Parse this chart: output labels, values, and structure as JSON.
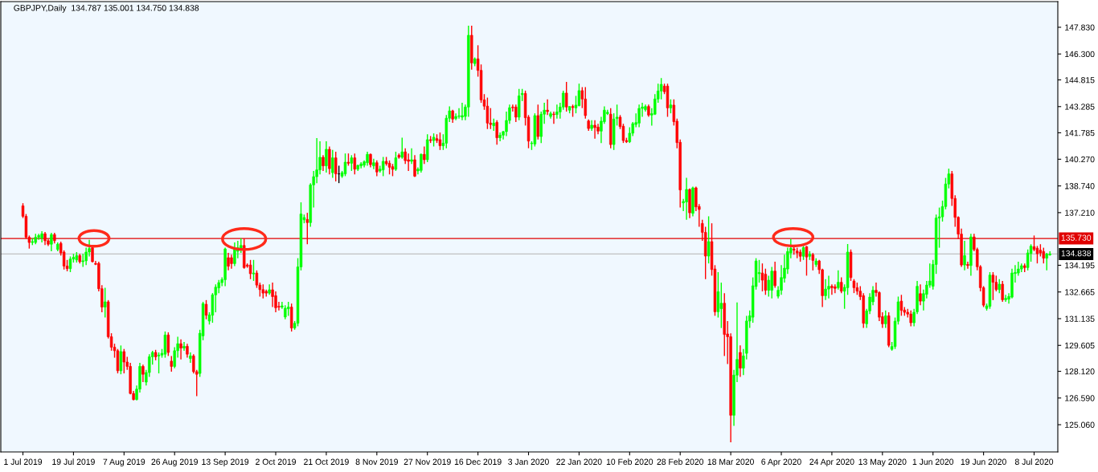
{
  "chart_data": {
    "type": "candlestick",
    "title": "GBPJPY,Daily  134.787 135.001 134.750 134.838",
    "categories": [
      "1 Jul 2019",
      null,
      null,
      null,
      null,
      null,
      null,
      null,
      null,
      null,
      null,
      null,
      null,
      null,
      null,
      null,
      "19 Jul 2019",
      null,
      null,
      null,
      null,
      null,
      null,
      null,
      null,
      null,
      null,
      null,
      null,
      null,
      null,
      null,
      "7 Aug 2019",
      null,
      null,
      null,
      null,
      null,
      null,
      null,
      null,
      null,
      null,
      null,
      null,
      null,
      null,
      null,
      "26 Aug 2019",
      null,
      null,
      null,
      null,
      null,
      null,
      null,
      null,
      null,
      null,
      null,
      null,
      null,
      null,
      null,
      "13 Sep 2019",
      null,
      null,
      null,
      null,
      null,
      null,
      null,
      null,
      null,
      null,
      null,
      null,
      null,
      null,
      null,
      "2 Oct 2019",
      null,
      null,
      null,
      null,
      null,
      null,
      null,
      null,
      null,
      null,
      null,
      null,
      null,
      null,
      null,
      "21 Oct 2019",
      null,
      null,
      null,
      null,
      null,
      null,
      null,
      null,
      null,
      null,
      null,
      null,
      null,
      null,
      null,
      "8 Nov 2019",
      null,
      null,
      null,
      null,
      null,
      null,
      null,
      null,
      null,
      null,
      null,
      null,
      null,
      null,
      null,
      "27 Nov 2019",
      null,
      null,
      null,
      null,
      null,
      null,
      null,
      null,
      null,
      null,
      null,
      null,
      null,
      null,
      null,
      "16 Dec 2019",
      null,
      null,
      null,
      null,
      null,
      null,
      null,
      null,
      null,
      null,
      null,
      null,
      null,
      null,
      null,
      "3 Jan 2020",
      null,
      null,
      null,
      null,
      null,
      null,
      null,
      null,
      null,
      null,
      null,
      null,
      null,
      null,
      null,
      "22 Jan 2020",
      null,
      null,
      null,
      null,
      null,
      null,
      null,
      null,
      null,
      null,
      null,
      null,
      null,
      null,
      null,
      "10 Feb 2020",
      null,
      null,
      null,
      null,
      null,
      null,
      null,
      null,
      null,
      null,
      null,
      null,
      null,
      null,
      null,
      "28 Feb 2020",
      null,
      null,
      null,
      null,
      null,
      null,
      null,
      null,
      null,
      null,
      null,
      null,
      null,
      null,
      null,
      "18 Mar 2020",
      null,
      null,
      null,
      null,
      null,
      null,
      null,
      null,
      null,
      null,
      null,
      null,
      null,
      null,
      null,
      "6 Apr 2020",
      null,
      null,
      null,
      null,
      null,
      null,
      null,
      null,
      null,
      null,
      null,
      null,
      null,
      null,
      null,
      "24 Apr 2020",
      null,
      null,
      null,
      null,
      null,
      null,
      null,
      null,
      null,
      null,
      null,
      null,
      null,
      null,
      null,
      "13 May 2020",
      null,
      null,
      null,
      null,
      null,
      null,
      null,
      null,
      null,
      null,
      null,
      null,
      null,
      null,
      null,
      "1 Jun 2020",
      null,
      null,
      null,
      null,
      null,
      null,
      null,
      null,
      null,
      null,
      null,
      null,
      null,
      null,
      null,
      "19 Jun 2020",
      null,
      null,
      null,
      null,
      null,
      null,
      null,
      null,
      null,
      null,
      null,
      null,
      null,
      null,
      null,
      "8 Jul 2020",
      null,
      null,
      null,
      null,
      null
    ],
    "ohlc": [
      [
        137.6,
        137.75,
        136.9,
        137.0
      ],
      [
        137.0,
        137.13,
        135.7,
        135.8
      ],
      [
        135.8,
        135.9,
        135.15,
        135.5
      ],
      [
        135.5,
        135.75,
        135.35,
        135.55
      ],
      [
        135.5,
        136.0,
        135.4,
        135.8
      ],
      [
        135.8,
        136.0,
        135.65,
        135.9
      ],
      [
        135.75,
        136.15,
        135.5,
        136.0
      ],
      [
        136.0,
        136.1,
        135.35,
        135.6
      ],
      [
        135.6,
        135.7,
        135.3,
        135.4
      ],
      [
        135.4,
        136.05,
        135.0,
        135.95
      ],
      [
        135.95,
        136.05,
        135.45,
        135.6
      ],
      [
        135.1,
        135.5,
        135.0,
        135.4
      ],
      [
        135.45,
        135.55,
        134.75,
        134.9
      ],
      [
        134.95,
        135.05,
        133.95,
        134.15
      ],
      [
        134.15,
        134.5,
        133.85,
        134.0
      ],
      [
        134.0,
        134.7,
        133.8,
        134.55
      ],
      [
        134.55,
        134.85,
        134.35,
        134.65
      ],
      [
        134.5,
        134.95,
        134.35,
        134.75
      ],
      [
        134.75,
        134.85,
        134.3,
        134.4
      ],
      [
        134.4,
        134.85,
        134.1,
        134.45
      ],
      [
        134.45,
        135.2,
        134.2,
        134.95
      ],
      [
        134.95,
        135.65,
        134.7,
        135.15
      ],
      [
        135.2,
        135.3,
        134.35,
        134.4
      ],
      [
        134.3,
        134.45,
        134.2,
        134.25
      ],
      [
        134.3,
        134.4,
        132.7,
        132.85
      ],
      [
        132.85,
        133.05,
        131.5,
        131.8
      ],
      [
        131.8,
        132.9,
        131.2,
        132.1
      ],
      [
        132.1,
        132.2,
        130.0,
        130.1
      ],
      [
        130.1,
        130.3,
        129.3,
        129.5
      ],
      [
        129.5,
        129.7,
        128.9,
        129.3
      ],
      [
        129.3,
        129.4,
        128.0,
        128.15
      ],
      [
        128.15,
        129.6,
        127.95,
        129.25
      ],
      [
        129.25,
        129.4,
        128.0,
        128.65
      ],
      [
        128.65,
        128.95,
        128.2,
        128.4
      ],
      [
        128.4,
        128.6,
        126.8,
        126.85
      ],
      [
        126.85,
        127.0,
        126.45,
        126.5
      ],
      [
        126.5,
        127.3,
        126.45,
        127.1
      ],
      [
        127.1,
        128.6,
        126.9,
        128.4
      ],
      [
        128.4,
        128.5,
        127.5,
        127.95
      ],
      [
        127.5,
        128.2,
        127.3,
        128.05
      ],
      [
        128.05,
        129.1,
        127.8,
        128.95
      ],
      [
        128.95,
        129.3,
        128.5,
        129.2
      ],
      [
        129.2,
        129.35,
        128.75,
        128.95
      ],
      [
        129.0,
        129.2,
        128.0,
        129.05
      ],
      [
        129.05,
        129.4,
        128.9,
        129.15
      ],
      [
        129.1,
        130.4,
        128.9,
        130.2
      ],
      [
        130.2,
        130.35,
        129.0,
        129.2
      ],
      [
        128.7,
        129.0,
        128.1,
        128.4
      ],
      [
        128.4,
        129.5,
        128.3,
        129.3
      ],
      [
        129.3,
        130.1,
        128.9,
        129.7
      ],
      [
        129.7,
        129.95,
        128.8,
        129.45
      ],
      [
        129.45,
        129.8,
        129.3,
        129.55
      ],
      [
        129.55,
        129.7,
        128.9,
        129.1
      ],
      [
        128.85,
        129.2,
        128.6,
        129.0
      ],
      [
        129.0,
        129.1,
        128.0,
        128.1
      ],
      [
        128.1,
        128.2,
        126.7,
        127.95
      ],
      [
        128.0,
        130.5,
        127.8,
        130.3
      ],
      [
        130.15,
        132.1,
        129.9,
        132.0
      ],
      [
        131.96,
        132.2,
        131.1,
        131.33
      ],
      [
        131.0,
        131.5,
        130.8,
        131.35
      ],
      [
        131.33,
        132.6,
        130.9,
        132.5
      ],
      [
        132.5,
        133.1,
        131.5,
        132.94
      ],
      [
        132.9,
        133.35,
        132.6,
        133.2
      ],
      [
        133.2,
        133.5,
        133.0,
        133.37
      ],
      [
        133.37,
        135.2,
        133.0,
        135.13
      ],
      [
        134.63,
        134.9,
        133.9,
        134.14
      ],
      [
        134.63,
        134.8,
        134.0,
        134.29
      ],
      [
        134.29,
        135.5,
        134.15,
        135.13
      ],
      [
        135.0,
        135.6,
        134.6,
        135.2
      ],
      [
        135.13,
        135.75,
        134.9,
        135.33
      ],
      [
        135.33,
        135.73,
        134.0,
        134.06
      ],
      [
        134.21,
        134.3,
        134.05,
        134.14
      ],
      [
        134.21,
        134.5,
        133.4,
        133.71
      ],
      [
        133.7,
        134.5,
        133.3,
        133.75
      ],
      [
        133.75,
        133.9,
        132.9,
        133.06
      ],
      [
        133.06,
        133.2,
        132.4,
        132.8
      ],
      [
        132.8,
        133.1,
        132.3,
        132.6
      ],
      [
        132.7,
        132.8,
        132.4,
        132.6
      ],
      [
        132.6,
        133.1,
        132.5,
        132.79
      ],
      [
        132.79,
        133.2,
        131.8,
        132.4
      ],
      [
        132.45,
        132.7,
        131.5,
        131.76
      ],
      [
        131.84,
        132.1,
        131.6,
        131.8
      ],
      [
        131.8,
        132.1,
        131.7,
        131.87
      ],
      [
        131.23,
        131.9,
        131.1,
        131.73
      ],
      [
        131.7,
        132.1,
        131.3,
        131.8
      ],
      [
        131.8,
        132.0,
        130.4,
        130.6
      ],
      [
        130.6,
        131.0,
        130.5,
        130.87
      ],
      [
        130.87,
        134.6,
        130.7,
        134.1
      ],
      [
        134.1,
        137.8,
        133.9,
        137.13
      ],
      [
        136.8,
        137.1,
        136.6,
        136.93
      ],
      [
        136.82,
        137.2,
        135.4,
        136.64
      ],
      [
        136.64,
        138.9,
        136.4,
        138.8
      ],
      [
        138.8,
        139.6,
        137.5,
        139.27
      ],
      [
        139.27,
        141.48,
        138.9,
        139.66
      ],
      [
        139.66,
        141.3,
        139.4,
        140.38
      ],
      [
        140.38,
        140.5,
        139.6,
        139.89
      ],
      [
        139.89,
        141.3,
        139.5,
        140.84
      ],
      [
        140.84,
        141.0,
        139.4,
        139.73
      ],
      [
        139.5,
        140.8,
        139.2,
        140.35
      ],
      [
        140.35,
        140.7,
        139.0,
        139.43
      ],
      [
        139.43,
        139.9,
        138.9,
        139.43
      ],
      [
        139.3,
        139.6,
        139.2,
        139.5
      ],
      [
        139.43,
        140.6,
        139.3,
        140.1
      ],
      [
        140.1,
        140.6,
        139.9,
        140.04
      ],
      [
        140.04,
        140.5,
        139.6,
        140.35
      ],
      [
        140.35,
        140.6,
        139.4,
        139.7
      ],
      [
        139.7,
        139.95,
        139.6,
        139.92
      ],
      [
        139.89,
        140.1,
        139.75,
        140.0
      ],
      [
        139.93,
        140.2,
        139.8,
        140.12
      ],
      [
        140.07,
        140.7,
        139.9,
        140.55
      ],
      [
        140.55,
        140.6,
        139.8,
        139.96
      ],
      [
        139.89,
        140.3,
        139.7,
        140.07
      ],
      [
        140.07,
        140.2,
        139.3,
        139.54
      ],
      [
        139.6,
        139.9,
        139.5,
        139.7
      ],
      [
        139.66,
        140.4,
        139.3,
        140.15
      ],
      [
        140.15,
        140.4,
        139.9,
        140.01
      ],
      [
        140.04,
        140.2,
        139.4,
        139.81
      ],
      [
        139.84,
        140.0,
        139.3,
        139.69
      ],
      [
        139.69,
        140.7,
        139.6,
        140.35
      ],
      [
        140.5,
        140.6,
        140.3,
        140.38
      ],
      [
        140.38,
        141.5,
        140.3,
        140.69
      ],
      [
        140.69,
        140.9,
        140.0,
        140.19
      ],
      [
        140.24,
        140.6,
        139.6,
        140.15
      ],
      [
        140.15,
        140.9,
        140.0,
        140.24
      ],
      [
        140.24,
        140.5,
        139.25,
        139.3
      ],
      [
        139.6,
        139.8,
        139.4,
        139.7
      ],
      [
        139.63,
        140.6,
        139.5,
        140.55
      ],
      [
        140.55,
        141.0,
        140.0,
        140.24
      ],
      [
        140.24,
        141.7,
        140.1,
        141.39
      ],
      [
        141.39,
        141.6,
        141.2,
        141.34
      ],
      [
        141.34,
        141.75,
        141.0,
        141.53
      ],
      [
        141.45,
        141.7,
        141.2,
        141.34
      ],
      [
        141.39,
        141.8,
        140.8,
        141.04
      ],
      [
        141.04,
        141.7,
        140.8,
        141.19
      ],
      [
        141.19,
        142.8,
        140.9,
        142.62
      ],
      [
        142.62,
        143.3,
        142.4,
        143.04
      ],
      [
        143.04,
        143.1,
        142.35,
        142.57
      ],
      [
        142.6,
        142.9,
        142.5,
        142.72
      ],
      [
        142.72,
        143.2,
        142.6,
        142.75
      ],
      [
        142.68,
        143.5,
        142.5,
        142.77
      ],
      [
        142.72,
        143.4,
        142.5,
        143.26
      ],
      [
        143.26,
        147.92,
        142.7,
        147.37
      ],
      [
        147.37,
        147.92,
        145.4,
        145.79
      ],
      [
        145.75,
        146.1,
        145.6,
        146.02
      ],
      [
        146.02,
        146.8,
        145.0,
        145.36
      ],
      [
        145.36,
        145.7,
        143.5,
        143.67
      ],
      [
        143.67,
        144.0,
        143.1,
        143.31
      ],
      [
        143.31,
        143.8,
        142.0,
        142.34
      ],
      [
        142.34,
        143.2,
        142.0,
        142.26
      ],
      [
        142.19,
        142.6,
        141.9,
        142.34
      ],
      [
        142.38,
        142.5,
        141.1,
        141.5
      ],
      [
        141.5,
        141.8,
        141.3,
        141.65
      ],
      [
        141.65,
        141.9,
        141.4,
        141.85
      ],
      [
        141.85,
        143.0,
        141.6,
        142.49
      ],
      [
        142.49,
        143.4,
        142.3,
        143.22
      ],
      [
        143.26,
        143.4,
        143.0,
        143.22
      ],
      [
        143.26,
        143.4,
        142.4,
        142.68
      ],
      [
        142.68,
        144.3,
        142.5,
        143.9
      ],
      [
        143.97,
        144.3,
        143.6,
        144.04
      ],
      [
        144.04,
        144.2,
        142.2,
        142.65
      ],
      [
        142.68,
        142.8,
        140.9,
        141.31
      ],
      [
        141.16,
        141.3,
        140.8,
        141.19
      ],
      [
        141.14,
        142.9,
        141.0,
        142.77
      ],
      [
        142.77,
        143.4,
        141.4,
        141.57
      ],
      [
        141.57,
        143.0,
        141.2,
        142.85
      ],
      [
        142.85,
        143.5,
        142.3,
        143.08
      ],
      [
        143.08,
        143.7,
        142.8,
        143.0
      ],
      [
        142.72,
        143.0,
        142.6,
        142.88
      ],
      [
        142.86,
        143.0,
        142.3,
        142.83
      ],
      [
        142.83,
        143.4,
        142.6,
        142.98
      ],
      [
        142.98,
        143.5,
        142.6,
        143.26
      ],
      [
        143.26,
        144.2,
        143.1,
        144.06
      ],
      [
        144.06,
        144.7,
        143.0,
        143.26
      ],
      [
        143.08,
        143.3,
        142.9,
        143.29
      ],
      [
        143.29,
        143.4,
        142.7,
        143.23
      ],
      [
        143.21,
        143.9,
        142.9,
        143.37
      ],
      [
        143.34,
        144.6,
        143.3,
        144.2
      ],
      [
        144.2,
        144.4,
        143.2,
        143.72
      ],
      [
        143.72,
        144.4,
        142.6,
        142.77
      ],
      [
        142.46,
        142.55,
        141.9,
        142.03
      ],
      [
        142.03,
        142.5,
        141.9,
        142.22
      ],
      [
        142.22,
        142.5,
        141.45,
        142.08
      ],
      [
        142.11,
        142.3,
        141.7,
        141.88
      ],
      [
        141.88,
        142.7,
        141.2,
        142.45
      ],
      [
        142.42,
        143.3,
        142.3,
        143.08
      ],
      [
        142.88,
        143.1,
        142.8,
        142.96
      ],
      [
        142.85,
        143.2,
        140.9,
        141.11
      ],
      [
        141.11,
        142.9,
        140.8,
        142.57
      ],
      [
        142.6,
        143.4,
        142.2,
        142.68
      ],
      [
        142.68,
        142.8,
        142.0,
        142.14
      ],
      [
        142.16,
        142.3,
        141.2,
        141.34
      ],
      [
        141.34,
        141.5,
        141.2,
        141.27
      ],
      [
        141.27,
        142.1,
        141.2,
        141.76
      ],
      [
        141.76,
        142.4,
        141.6,
        142.31
      ],
      [
        142.26,
        142.9,
        142.1,
        142.37
      ],
      [
        142.34,
        143.4,
        142.1,
        143.18
      ],
      [
        143.18,
        143.5,
        142.7,
        143.26
      ],
      [
        143.11,
        143.4,
        143.0,
        143.29
      ],
      [
        143.29,
        143.4,
        142.7,
        142.8
      ],
      [
        142.8,
        143.2,
        142.2,
        142.88
      ],
      [
        142.85,
        144.0,
        142.8,
        143.72
      ],
      [
        143.72,
        144.6,
        143.5,
        144.18
      ],
      [
        144.18,
        144.92,
        143.7,
        144.56
      ],
      [
        144.46,
        144.6,
        144.0,
        144.14
      ],
      [
        144.46,
        144.6,
        142.7,
        143.21
      ],
      [
        143.21,
        143.7,
        142.9,
        143.38
      ],
      [
        143.37,
        143.7,
        142.2,
        142.42
      ],
      [
        142.45,
        142.6,
        140.9,
        141.22
      ],
      [
        141.24,
        141.4,
        137.5,
        138.51
      ],
      [
        137.77,
        138.0,
        137.3,
        137.85
      ],
      [
        137.82,
        139.2,
        136.8,
        138.54
      ],
      [
        138.54,
        138.6,
        136.9,
        137.2
      ],
      [
        137.17,
        138.7,
        137.0,
        138.63
      ],
      [
        138.63,
        138.7,
        137.3,
        137.54
      ],
      [
        137.56,
        137.7,
        136.4,
        137.39
      ],
      [
        136.59,
        136.8,
        135.6,
        136.08
      ],
      [
        136.08,
        136.4,
        133.4,
        134.72
      ],
      [
        134.72,
        137.0,
        134.3,
        135.55
      ],
      [
        135.55,
        136.6,
        133.6,
        133.95
      ],
      [
        133.98,
        134.2,
        131.3,
        131.53
      ],
      [
        131.53,
        133.8,
        131.2,
        132.68
      ],
      [
        131.71,
        133.2,
        130.6,
        132.02
      ],
      [
        132.02,
        132.6,
        129.0,
        130.23
      ],
      [
        130.26,
        131.0,
        128.54,
        130.1
      ],
      [
        130.1,
        130.3,
        124.05,
        125.6
      ],
      [
        125.6,
        128.2,
        125.0,
        127.9
      ],
      [
        127.9,
        132.07,
        127.5,
        128.8
      ],
      [
        129.2,
        129.6,
        127.8,
        128.3
      ],
      [
        128.3,
        129.4,
        127.9,
        129.0
      ],
      [
        129.15,
        131.3,
        128.8,
        131.0
      ],
      [
        131.0,
        131.6,
        130.6,
        131.3
      ],
      [
        131.22,
        133.5,
        130.9,
        133.02
      ],
      [
        132.98,
        134.6,
        132.8,
        134.44
      ],
      [
        133.71,
        134.5,
        133.2,
        133.78
      ],
      [
        133.75,
        134.3,
        132.7,
        133.34
      ],
      [
        133.68,
        134.0,
        132.5,
        132.76
      ],
      [
        132.76,
        133.6,
        132.4,
        133.34
      ],
      [
        132.76,
        134.1,
        132.3,
        133.86
      ],
      [
        133.86,
        134.4,
        132.9,
        133.03
      ],
      [
        132.42,
        133.0,
        132.3,
        132.76
      ],
      [
        132.76,
        134.2,
        132.5,
        133.49
      ],
      [
        133.45,
        134.8,
        133.2,
        134.03
      ],
      [
        133.98,
        135.2,
        133.7,
        134.98
      ],
      [
        134.9,
        135.7,
        134.6,
        135.17
      ],
      [
        135.13,
        135.3,
        134.8,
        135.06
      ],
      [
        135.01,
        135.2,
        134.6,
        134.9
      ],
      [
        134.95,
        135.1,
        134.4,
        134.71
      ],
      [
        134.71,
        135.3,
        134.5,
        135.21
      ],
      [
        135.26,
        135.3,
        133.6,
        134.67
      ],
      [
        134.71,
        135.0,
        134.5,
        134.83
      ],
      [
        134.8,
        134.9,
        133.9,
        134.47
      ],
      [
        134.24,
        134.6,
        134.1,
        134.44
      ],
      [
        134.44,
        134.5,
        133.7,
        133.94
      ],
      [
        133.94,
        134.0,
        131.8,
        132.45
      ],
      [
        132.45,
        133.4,
        132.2,
        132.83
      ],
      [
        132.83,
        133.6,
        132.3,
        132.99
      ],
      [
        132.99,
        133.1,
        132.5,
        132.91
      ],
      [
        132.96,
        133.1,
        132.6,
        132.87
      ],
      [
        132.91,
        133.9,
        132.8,
        133.22
      ],
      [
        133.22,
        133.5,
        132.6,
        132.71
      ],
      [
        132.71,
        133.1,
        131.7,
        132.93
      ],
      [
        132.91,
        135.41,
        132.5,
        134.95
      ],
      [
        134.95,
        135.1,
        133.3,
        133.49
      ],
      [
        133.29,
        133.4,
        132.6,
        132.91
      ],
      [
        132.91,
        133.2,
        132.5,
        132.71
      ],
      [
        132.71,
        133.0,
        132.2,
        132.4
      ],
      [
        132.45,
        132.6,
        130.6,
        130.87
      ],
      [
        130.84,
        131.7,
        130.6,
        131.58
      ],
      [
        131.58,
        132.6,
        131.4,
        132.37
      ],
      [
        132.1,
        133.0,
        131.9,
        132.76
      ],
      [
        132.76,
        133.2,
        132.4,
        132.63
      ],
      [
        132.63,
        132.7,
        131.0,
        131.22
      ],
      [
        131.25,
        131.5,
        130.6,
        130.84
      ],
      [
        130.84,
        131.6,
        130.6,
        131.3
      ],
      [
        131.3,
        131.5,
        129.5,
        129.61
      ],
      [
        129.38,
        129.8,
        129.3,
        129.54
      ],
      [
        129.54,
        131.2,
        129.4,
        130.99
      ],
      [
        130.99,
        132.4,
        130.8,
        132.1
      ],
      [
        132.14,
        132.5,
        131.3,
        131.61
      ],
      [
        131.63,
        131.8,
        131.3,
        131.5
      ],
      [
        131.5,
        131.7,
        131.2,
        131.4
      ],
      [
        131.4,
        131.6,
        130.7,
        130.9
      ],
      [
        130.9,
        131.7,
        130.7,
        131.5
      ],
      [
        131.53,
        133.3,
        131.4,
        132.99
      ],
      [
        132.57,
        133.1,
        131.9,
        132.14
      ],
      [
        132.14,
        132.8,
        131.6,
        132.57
      ],
      [
        132.53,
        133.3,
        132.3,
        133.06
      ],
      [
        133.06,
        134.3,
        132.9,
        133.29
      ],
      [
        132.99,
        134.5,
        132.8,
        134.24
      ],
      [
        134.24,
        137.1,
        133.7,
        136.9
      ],
      [
        136.9,
        137.5,
        135.2,
        136.97
      ],
      [
        136.97,
        137.9,
        136.7,
        137.56
      ],
      [
        137.56,
        139.2,
        137.4,
        138.85
      ],
      [
        138.85,
        139.73,
        138.6,
        139.43
      ],
      [
        139.43,
        139.6,
        137.6,
        138.02
      ],
      [
        138.02,
        138.2,
        136.4,
        136.94
      ],
      [
        136.94,
        137.0,
        135.7,
        135.98
      ],
      [
        135.98,
        136.3,
        134.1,
        134.21
      ],
      [
        134.21,
        135.6,
        133.9,
        134.75
      ],
      [
        134.24,
        134.4,
        134.0,
        134.18
      ],
      [
        134.18,
        136.0,
        133.6,
        135.82
      ],
      [
        135.82,
        136.0,
        135.0,
        135.1
      ],
      [
        135.1,
        135.2,
        133.9,
        134.11
      ],
      [
        134.11,
        134.2,
        132.7,
        132.91
      ],
      [
        132.91,
        133.0,
        131.8,
        131.91
      ],
      [
        131.72,
        132.0,
        131.6,
        131.87
      ],
      [
        131.84,
        133.8,
        131.7,
        133.63
      ],
      [
        133.63,
        133.8,
        132.2,
        133.22
      ],
      [
        133.22,
        133.6,
        132.7,
        132.8
      ],
      [
        132.8,
        133.4,
        132.6,
        133.11
      ],
      [
        133.11,
        133.3,
        132.1,
        132.22
      ],
      [
        132.22,
        132.5,
        132.1,
        132.3
      ],
      [
        132.25,
        132.6,
        132.0,
        132.41
      ],
      [
        132.37,
        134.0,
        132.3,
        133.75
      ],
      [
        133.72,
        134.2,
        133.2,
        133.78
      ],
      [
        133.75,
        134.4,
        133.6,
        133.98
      ],
      [
        133.98,
        134.3,
        133.8,
        134.17
      ],
      [
        134.17,
        134.3,
        133.8,
        134.06
      ],
      [
        134.06,
        135.1,
        133.9,
        134.9
      ],
      [
        134.87,
        135.4,
        134.4,
        135.29
      ],
      [
        135.26,
        135.9,
        135.0,
        135.1
      ],
      [
        135.17,
        135.3,
        134.3,
        134.86
      ],
      [
        135.06,
        135.4,
        134.7,
        134.9
      ],
      [
        134.98,
        135.2,
        134.3,
        134.6
      ],
      [
        134.6,
        134.9,
        133.9,
        134.83
      ],
      [
        134.787,
        135.001,
        134.75,
        134.838
      ]
    ],
    "ylim": [
      123.5,
      149.3
    ],
    "yticks": [
      {
        "value": 125.06,
        "label": "125.060"
      },
      {
        "value": 126.59,
        "label": "126.590"
      },
      {
        "value": 128.12,
        "label": "128.120"
      },
      {
        "value": 129.605,
        "label": "129.605"
      },
      {
        "value": 131.135,
        "label": "131.135"
      },
      {
        "value": 132.665,
        "label": "132.665"
      },
      {
        "value": 134.195,
        "label": "134.195"
      },
      {
        "value": 137.21,
        "label": "137.210"
      },
      {
        "value": 138.74,
        "label": "138.740"
      },
      {
        "value": 140.27,
        "label": "140.270"
      },
      {
        "value": 141.785,
        "label": "141.785"
      },
      {
        "value": 143.285,
        "label": "143.285"
      },
      {
        "value": 144.815,
        "label": "144.815"
      },
      {
        "value": 146.3,
        "label": "146.300"
      },
      {
        "value": 147.83,
        "label": "147.830"
      }
    ],
    "ref_lines": [
      {
        "axis": "y",
        "value": 135.73,
        "label": "135.730",
        "color": "#e00000"
      },
      {
        "axis": "y",
        "value": 134.838,
        "label": "134.838",
        "color": "#c0c0c0"
      }
    ],
    "grid": false,
    "legend": false
  }
}
